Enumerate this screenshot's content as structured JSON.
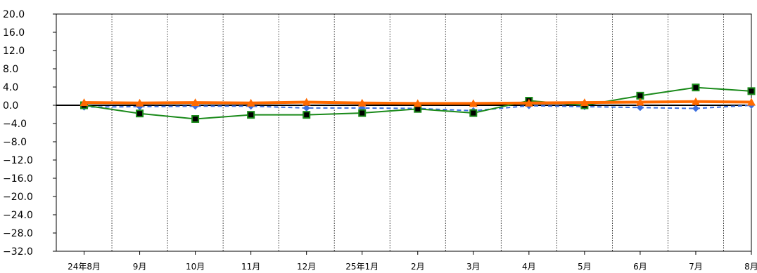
{
  "chart_data": {
    "type": "line",
    "categories": [
      "24年8月",
      "9月",
      "10月",
      "11月",
      "12月",
      "25年1月",
      "2月",
      "3月",
      "4月",
      "5月",
      "6月",
      "7月",
      "8月"
    ],
    "y_ticks": [
      "20.0",
      "16.0",
      "12.0",
      "8.0",
      "4.0",
      "0.0",
      "−4.0",
      "−8.0",
      "−12.0",
      "−16.0",
      "−20.0",
      "−24.0",
      "−28.0",
      "−32.0"
    ],
    "ylim": [
      -32,
      20
    ],
    "grid": {
      "vertical": "dotted",
      "horizontal": false
    },
    "zero_line": true,
    "series": [
      {
        "style": "dashed",
        "marker": "diamond",
        "color": "#3b6fe0",
        "values": [
          -0.4,
          -0.3,
          -0.2,
          -0.2,
          -0.6,
          -0.6,
          -0.7,
          -1.2,
          -0.1,
          -0.3,
          -0.5,
          -0.7,
          0.0
        ]
      },
      {
        "style": "solid",
        "marker": "square",
        "color": "#1a8a1a",
        "marker_fill": "#000000",
        "values": [
          0.0,
          -1.8,
          -3.0,
          -2.1,
          -2.1,
          -1.7,
          -0.8,
          -1.7,
          1.0,
          0.0,
          2.1,
          3.9,
          3.1
        ]
      },
      {
        "style": "solid-thick",
        "marker": "triangle",
        "color": "#ff6a00",
        "values": [
          0.6,
          0.5,
          0.6,
          0.5,
          0.7,
          0.5,
          0.4,
          0.4,
          0.5,
          0.6,
          0.7,
          0.8,
          0.7
        ]
      }
    ]
  }
}
